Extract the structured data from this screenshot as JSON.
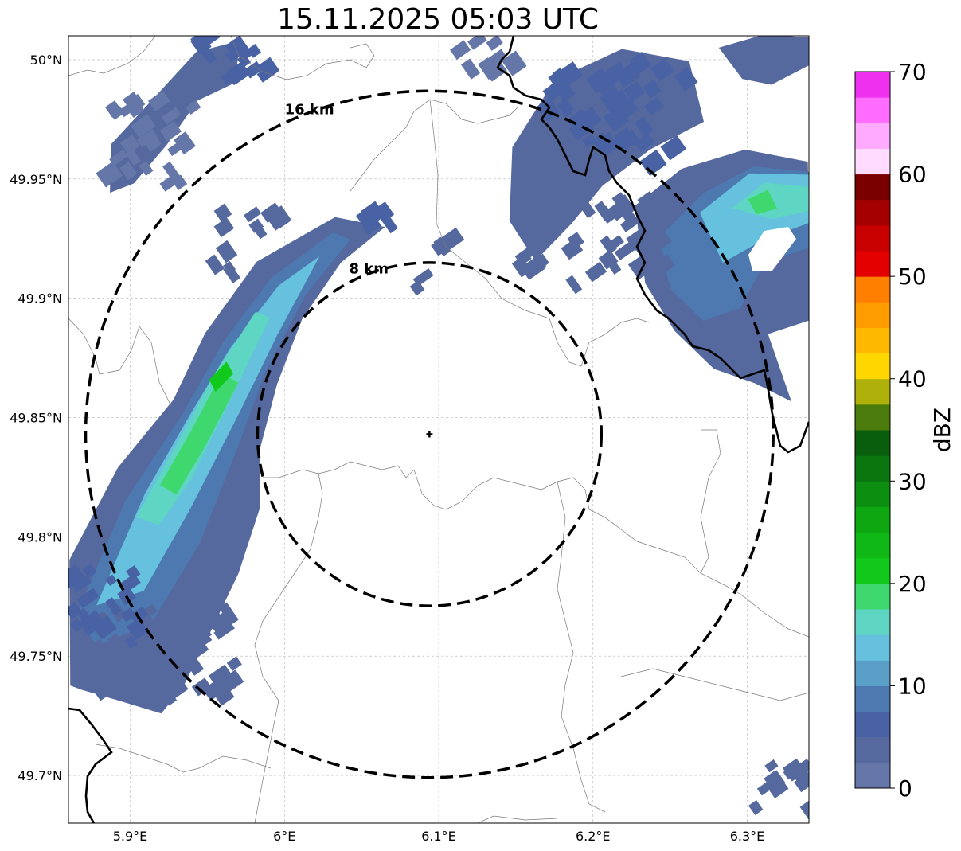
{
  "title": "15.11.2025 05:03 UTC",
  "map": {
    "lon_range": [
      5.86,
      6.34
    ],
    "lat_range": [
      49.68,
      50.01
    ],
    "x_ticks": [
      {
        "value": 5.9,
        "label": "5.9°E"
      },
      {
        "value": 6.0,
        "label": "6°E"
      },
      {
        "value": 6.1,
        "label": "6.1°E"
      },
      {
        "value": 6.2,
        "label": "6.2°E"
      },
      {
        "value": 6.3,
        "label": "6.3°E"
      }
    ],
    "y_ticks": [
      {
        "value": 50.0,
        "label": "50°N"
      },
      {
        "value": 49.95,
        "label": "49.95°N"
      },
      {
        "value": 49.9,
        "label": "49.9°N"
      },
      {
        "value": 49.85,
        "label": "49.85°N"
      },
      {
        "value": 49.8,
        "label": "49.8°N"
      },
      {
        "value": 49.75,
        "label": "49.75°N"
      },
      {
        "value": 49.7,
        "label": "49.7°N"
      }
    ],
    "grid": true,
    "radar_site": {
      "lon": 6.094,
      "lat": 49.843
    },
    "range_rings": [
      {
        "radius_km": 8,
        "label": "8 km"
      },
      {
        "radius_km": 16,
        "label": "16 km"
      }
    ]
  },
  "colorbar": {
    "label": "dBZ",
    "min": 0,
    "max": 70,
    "ticks": [
      0,
      10,
      20,
      30,
      40,
      50,
      60,
      70
    ],
    "tick_labels": [
      "0",
      "10",
      "20",
      "30",
      "40",
      "50",
      "60",
      "70"
    ],
    "colors": [
      "#6477a8",
      "#56699f",
      "#4862a3",
      "#4d78b0",
      "#5a9fc8",
      "#66c1de",
      "#5fd5c4",
      "#3ed86f",
      "#10c91a",
      "#0fb815",
      "#0ea712",
      "#0c8e11",
      "#0b7510",
      "#085e0c",
      "#4b7b0b",
      "#b0b00a",
      "#ffd700",
      "#ffb800",
      "#ff9c00",
      "#ff7f00",
      "#e50000",
      "#c80000",
      "#a50000",
      "#7a0000",
      "#ffdcff",
      "#ffaaff",
      "#ff6cff",
      "#ef30ef"
    ]
  }
}
